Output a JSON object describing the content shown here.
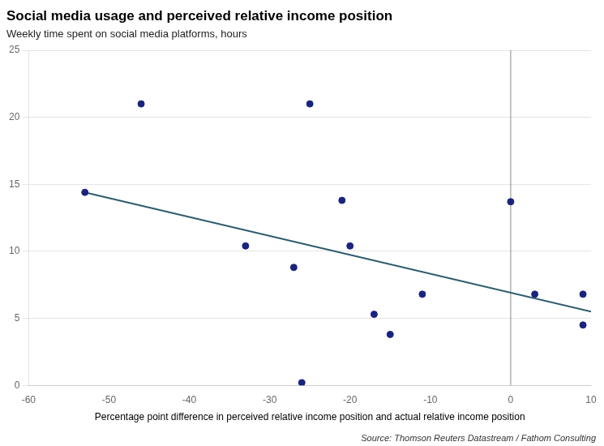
{
  "chart_data": {
    "type": "scatter",
    "title": "Social media usage and perceived relative income position",
    "subtitle": "Weekly time spent on social media platforms, hours",
    "xlabel": "Percentage point difference in perceived relative income position and actual relative income position",
    "source": "Source: Thomson Reuters Datastream / Fathom Consulting",
    "series": [
      {
        "type": "scatter",
        "color": "#1a237e",
        "x": [
          -53,
          -46,
          -33,
          -27,
          -26,
          -25,
          -21,
          -20,
          -17,
          -15,
          -11,
          0,
          3,
          9,
          9
        ],
        "values": [
          14.4,
          21.0,
          10.4,
          8.8,
          0.2,
          21.0,
          13.8,
          10.4,
          5.3,
          3.8,
          6.8,
          13.7,
          6.8,
          4.5,
          6.8
        ]
      },
      {
        "type": "line",
        "color": "#2e5c6e",
        "x": [
          -53,
          10
        ],
        "values": [
          14.4,
          5.5
        ]
      }
    ],
    "vline": 0,
    "xlim": [
      -60,
      10
    ],
    "ylim": [
      0,
      25
    ],
    "xticks": [
      -60,
      -50,
      -40,
      -30,
      -20,
      -10,
      0,
      10
    ],
    "yticks": [
      0,
      5,
      10,
      15,
      20,
      25
    ],
    "grid": "y"
  }
}
